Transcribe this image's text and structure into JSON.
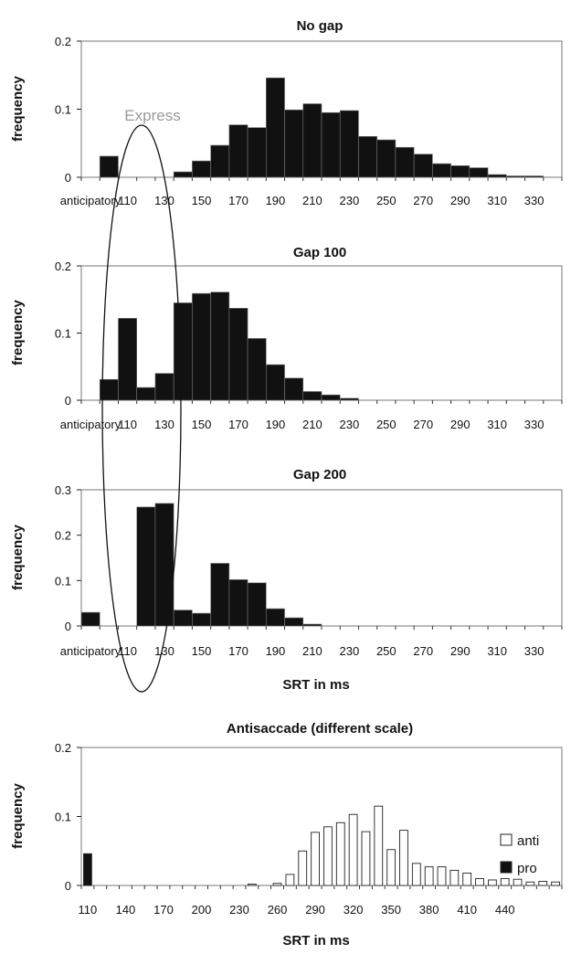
{
  "chart_data": [
    {
      "type": "bar",
      "title": "No gap",
      "ylabel": "frequency",
      "xlabel": "",
      "ylim": [
        0,
        0.2
      ],
      "yticks": [
        "0",
        "0.1",
        "0.2"
      ],
      "xtick_labels": [
        "anticipatory",
        "110",
        "130",
        "150",
        "170",
        "190",
        "210",
        "230",
        "250",
        "270",
        "290",
        "310",
        "330"
      ],
      "bin_width_ms": 10,
      "bins": [
        "anticipatory",
        "100",
        "110",
        "120",
        "130",
        "140",
        "150",
        "160",
        "170",
        "180",
        "190",
        "200",
        "210",
        "220",
        "230",
        "240",
        "250",
        "260",
        "270",
        "280",
        "290",
        "300",
        "310",
        "320",
        "330",
        "340"
      ],
      "values": [
        0,
        0.031,
        0,
        0,
        0,
        0.008,
        0.024,
        0.047,
        0.077,
        0.073,
        0.146,
        0.099,
        0.108,
        0.095,
        0.098,
        0.06,
        0.055,
        0.044,
        0.034,
        0.02,
        0.017,
        0.014,
        0.004,
        0.002,
        0.002,
        0
      ],
      "bar_color": "#111111",
      "annotation": "Express"
    },
    {
      "type": "bar",
      "title": "Gap 100",
      "ylabel": "frequency",
      "xlabel": "",
      "ylim": [
        0,
        0.2
      ],
      "yticks": [
        "0",
        "0.1",
        "0.2"
      ],
      "xtick_labels": [
        "anticipatory",
        "110",
        "130",
        "150",
        "170",
        "190",
        "210",
        "230",
        "250",
        "270",
        "290",
        "310",
        "330"
      ],
      "bin_width_ms": 10,
      "bins": [
        "anticipatory",
        "100",
        "110",
        "120",
        "130",
        "140",
        "150",
        "160",
        "170",
        "180",
        "190",
        "200",
        "210",
        "220",
        "230",
        "240",
        "250",
        "260",
        "270",
        "280",
        "290",
        "300",
        "310",
        "320",
        "330",
        "340"
      ],
      "values": [
        0,
        0.031,
        0.122,
        0.019,
        0.04,
        0.145,
        0.159,
        0.161,
        0.137,
        0.092,
        0.053,
        0.033,
        0.013,
        0.008,
        0.003,
        0,
        0,
        0,
        0,
        0,
        0,
        0,
        0,
        0,
        0,
        0
      ],
      "bar_color": "#111111"
    },
    {
      "type": "bar",
      "title": "Gap 200",
      "ylabel": "frequency",
      "xlabel": "SRT in ms",
      "ylim": [
        0,
        0.3
      ],
      "yticks": [
        "0",
        "0.1",
        "0.2",
        "0.3"
      ],
      "xtick_labels": [
        "anticipatory",
        "110",
        "130",
        "150",
        "170",
        "190",
        "210",
        "230",
        "250",
        "270",
        "290",
        "310",
        "330"
      ],
      "bin_width_ms": 10,
      "bins": [
        "anticipatory",
        "100",
        "110",
        "120",
        "130",
        "140",
        "150",
        "160",
        "170",
        "180",
        "190",
        "200",
        "210",
        "220",
        "230",
        "240",
        "250",
        "260",
        "270",
        "280",
        "290",
        "300",
        "310",
        "320",
        "330",
        "340"
      ],
      "values": [
        0.03,
        0,
        0,
        0.262,
        0.27,
        0.035,
        0.028,
        0.138,
        0.102,
        0.095,
        0.038,
        0.018,
        0.004,
        0,
        0,
        0,
        0,
        0,
        0,
        0,
        0,
        0,
        0,
        0,
        0,
        0
      ],
      "bar_color": "#111111"
    },
    {
      "type": "bar",
      "title": "Antisaccade (different scale)",
      "ylabel": "frequency",
      "xlabel": "SRT in ms",
      "ylim": [
        0,
        0.2
      ],
      "yticks": [
        "0",
        "0.1",
        "0.2"
      ],
      "xtick_labels": [
        "110",
        "140",
        "170",
        "200",
        "230",
        "260",
        "290",
        "320",
        "350",
        "380",
        "410",
        "440"
      ],
      "bin_width_ms": 10,
      "bins_start_ms": 110,
      "series": [
        {
          "name": "anti",
          "color": "#ffffff",
          "values": [
            0,
            0,
            0,
            0,
            0,
            0,
            0,
            0,
            0,
            0,
            0,
            0,
            0,
            0.002,
            0,
            0.003,
            0.016,
            0.05,
            0.077,
            0.085,
            0.091,
            0.103,
            0.078,
            0.115,
            0.052,
            0.08,
            0.032,
            0.027,
            0.027,
            0.022,
            0.018,
            0.01,
            0.008,
            0.01,
            0.009,
            0.005,
            0.006,
            0.005
          ]
        },
        {
          "name": "pro",
          "color": "#111111",
          "values": [
            0.046,
            0,
            0,
            0,
            0,
            0,
            0,
            0,
            0,
            0,
            0,
            0,
            0,
            0,
            0,
            0,
            0,
            0,
            0,
            0,
            0,
            0,
            0,
            0,
            0,
            0,
            0,
            0,
            0,
            0,
            0,
            0,
            0,
            0,
            0,
            0,
            0,
            0
          ]
        }
      ],
      "legend": "right"
    }
  ]
}
